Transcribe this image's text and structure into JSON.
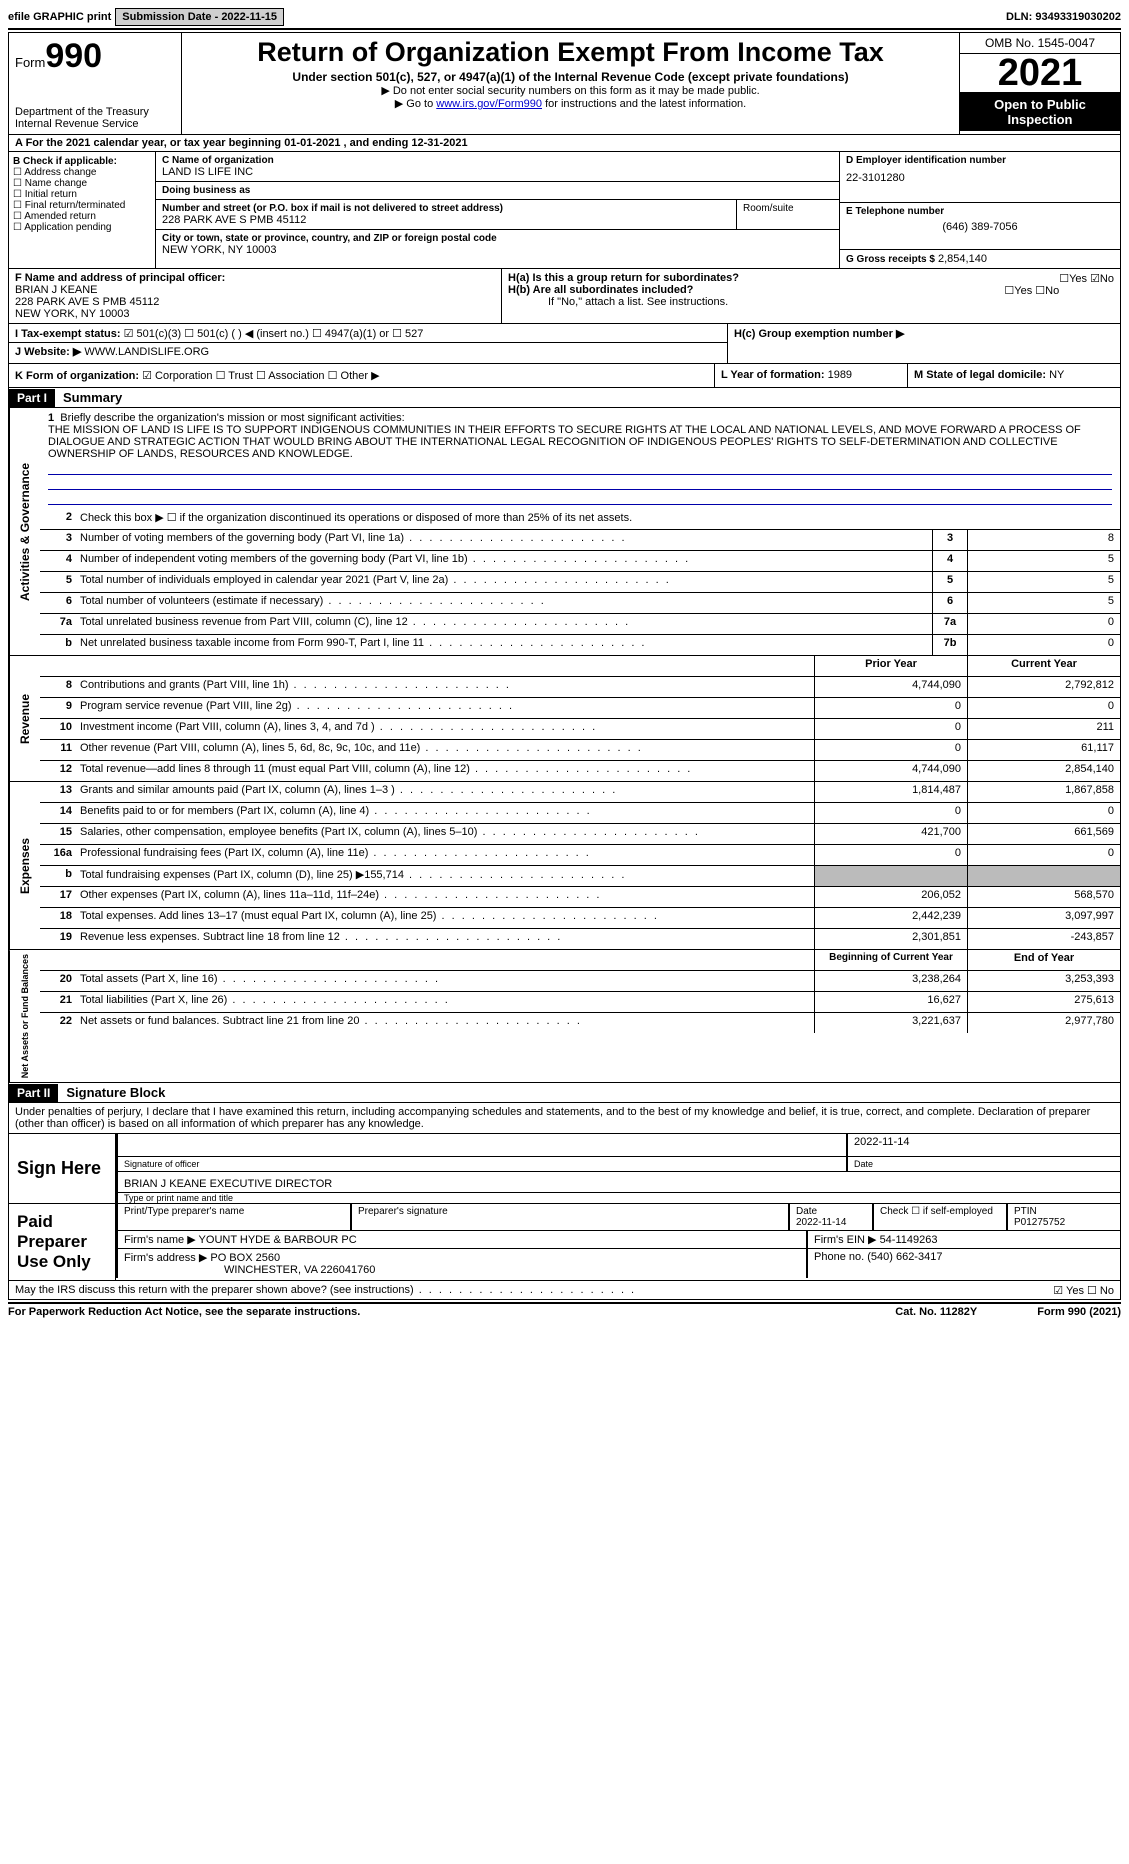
{
  "top": {
    "efile": "efile GRAPHIC print",
    "submission": "Submission Date - 2022-11-15",
    "dln": "DLN: 93493319030202"
  },
  "header": {
    "form_label": "Form",
    "form_num": "990",
    "title": "Return of Organization Exempt From Income Tax",
    "subtitle": "Under section 501(c), 527, or 4947(a)(1) of the Internal Revenue Code (except private foundations)",
    "note1": "▶ Do not enter social security numbers on this form as it may be made public.",
    "note2_pre": "▶ Go to ",
    "note2_link": "www.irs.gov/Form990",
    "note2_post": " for instructions and the latest information.",
    "dept": "Department of the Treasury Internal Revenue Service",
    "omb": "OMB No. 1545-0047",
    "year": "2021",
    "inspect": "Open to Public Inspection"
  },
  "rowA": "A For the 2021 calendar year, or tax year beginning 01-01-2021   , and ending 12-31-2021",
  "B": {
    "label": "B Check if applicable:",
    "items": [
      "Address change",
      "Name change",
      "Initial return",
      "Final return/terminated",
      "Amended return",
      "Application pending"
    ]
  },
  "C": {
    "name_label": "C Name of organization",
    "name": "LAND IS LIFE INC",
    "dba_label": "Doing business as",
    "dba": "",
    "street_label": "Number and street (or P.O. box if mail is not delivered to street address)",
    "street": "228 PARK AVE S PMB 45112",
    "room_label": "Room/suite",
    "city_label": "City or town, state or province, country, and ZIP or foreign postal code",
    "city": "NEW YORK, NY  10003"
  },
  "D": {
    "label": "D Employer identification number",
    "val": "22-3101280"
  },
  "E": {
    "label": "E Telephone number",
    "val": "(646) 389-7056"
  },
  "G": {
    "label": "G Gross receipts $",
    "val": "2,854,140"
  },
  "F": {
    "label": "F  Name and address of principal officer:",
    "name": "BRIAN J KEANE",
    "addr1": "228 PARK AVE S PMB 45112",
    "addr2": "NEW YORK, NY  10003"
  },
  "H": {
    "a": "H(a)  Is this a group return for subordinates?",
    "b": "H(b)  Are all subordinates included?",
    "note": "If \"No,\" attach a list. See instructions.",
    "c": "H(c)  Group exemption number ▶"
  },
  "I": {
    "label": "I    Tax-exempt status:",
    "opts": "501(c)(3)     ☐   501(c) (  ) ◀ (insert no.)     ☐   4947(a)(1) or   ☐  527"
  },
  "J": {
    "label": "J   Website: ▶",
    "val": "WWW.LANDISLIFE.ORG"
  },
  "K": {
    "label": "K Form of organization:",
    "opts": "Corporation  ☐ Trust  ☐ Association  ☐ Other ▶"
  },
  "L": {
    "label": "L Year of formation:",
    "val": "1989"
  },
  "M": {
    "label": "M State of legal domicile:",
    "val": "NY"
  },
  "parts": {
    "p1": "Part I",
    "p1t": "Summary",
    "p2": "Part II",
    "p2t": "Signature Block"
  },
  "summary": {
    "l1": "Briefly describe the organization's mission or most significant activities:",
    "mission": "THE MISSION OF LAND IS LIFE IS TO SUPPORT INDIGENOUS COMMUNITIES IN THEIR EFFORTS TO SECURE RIGHTS AT THE LOCAL AND NATIONAL LEVELS, AND MOVE FORWARD A PROCESS OF DIALOGUE AND STRATEGIC ACTION THAT WOULD BRING ABOUT THE INTERNATIONAL LEGAL RECOGNITION OF INDIGENOUS PEOPLES' RIGHTS TO SELF-DETERMINATION AND COLLECTIVE OWNERSHIP OF LANDS, RESOURCES AND KNOWLEDGE.",
    "l2": "Check this box ▶ ☐  if the organization discontinued its operations or disposed of more than 25% of its net assets.",
    "rows_a": [
      {
        "n": "3",
        "d": "Number of voting members of the governing body (Part VI, line 1a)",
        "c": "3",
        "v": "8"
      },
      {
        "n": "4",
        "d": "Number of independent voting members of the governing body (Part VI, line 1b)",
        "c": "4",
        "v": "5"
      },
      {
        "n": "5",
        "d": "Total number of individuals employed in calendar year 2021 (Part V, line 2a)",
        "c": "5",
        "v": "5"
      },
      {
        "n": "6",
        "d": "Total number of volunteers (estimate if necessary)",
        "c": "6",
        "v": "5"
      },
      {
        "n": "7a",
        "d": "Total unrelated business revenue from Part VIII, column (C), line 12",
        "c": "7a",
        "v": "0"
      },
      {
        "n": "b",
        "d": "Net unrelated business taxable income from Form 990-T, Part I, line 11",
        "c": "7b",
        "v": "0"
      }
    ],
    "hdr_prior": "Prior Year",
    "hdr_curr": "Current Year",
    "rows_rev": [
      {
        "n": "8",
        "d": "Contributions and grants (Part VIII, line 1h)",
        "p": "4,744,090",
        "c": "2,792,812"
      },
      {
        "n": "9",
        "d": "Program service revenue (Part VIII, line 2g)",
        "p": "0",
        "c": "0"
      },
      {
        "n": "10",
        "d": "Investment income (Part VIII, column (A), lines 3, 4, and 7d )",
        "p": "0",
        "c": "211"
      },
      {
        "n": "11",
        "d": "Other revenue (Part VIII, column (A), lines 5, 6d, 8c, 9c, 10c, and 11e)",
        "p": "0",
        "c": "61,117"
      },
      {
        "n": "12",
        "d": "Total revenue—add lines 8 through 11 (must equal Part VIII, column (A), line 12)",
        "p": "4,744,090",
        "c": "2,854,140"
      }
    ],
    "rows_exp": [
      {
        "n": "13",
        "d": "Grants and similar amounts paid (Part IX, column (A), lines 1–3 )",
        "p": "1,814,487",
        "c": "1,867,858"
      },
      {
        "n": "14",
        "d": "Benefits paid to or for members (Part IX, column (A), line 4)",
        "p": "0",
        "c": "0"
      },
      {
        "n": "15",
        "d": "Salaries, other compensation, employee benefits (Part IX, column (A), lines 5–10)",
        "p": "421,700",
        "c": "661,569"
      },
      {
        "n": "16a",
        "d": "Professional fundraising fees (Part IX, column (A), line 11e)",
        "p": "0",
        "c": "0"
      },
      {
        "n": "b",
        "d": "Total fundraising expenses (Part IX, column (D), line 25) ▶155,714",
        "p": "",
        "c": "",
        "grey": true
      },
      {
        "n": "17",
        "d": "Other expenses (Part IX, column (A), lines 11a–11d, 11f–24e)",
        "p": "206,052",
        "c": "568,570"
      },
      {
        "n": "18",
        "d": "Total expenses. Add lines 13–17 (must equal Part IX, column (A), line 25)",
        "p": "2,442,239",
        "c": "3,097,997"
      },
      {
        "n": "19",
        "d": "Revenue less expenses. Subtract line 18 from line 12",
        "p": "2,301,851",
        "c": "-243,857"
      }
    ],
    "hdr_beg": "Beginning of Current Year",
    "hdr_end": "End of Year",
    "rows_net": [
      {
        "n": "20",
        "d": "Total assets (Part X, line 16)",
        "p": "3,238,264",
        "c": "3,253,393"
      },
      {
        "n": "21",
        "d": "Total liabilities (Part X, line 26)",
        "p": "16,627",
        "c": "275,613"
      },
      {
        "n": "22",
        "d": "Net assets or fund balances. Subtract line 21 from line 20",
        "p": "3,221,637",
        "c": "2,977,780"
      }
    ]
  },
  "vtabs": {
    "a": "Activities & Governance",
    "r": "Revenue",
    "e": "Expenses",
    "n": "Net Assets or Fund Balances"
  },
  "sig": {
    "decl": "Under penalties of perjury, I declare that I have examined this return, including accompanying schedules and statements, and to the best of my knowledge and belief, it is true, correct, and complete. Declaration of preparer (other than officer) is based on all information of which preparer has any knowledge.",
    "sign_here": "Sign Here",
    "sig_officer": "Signature of officer",
    "date1": "2022-11-14",
    "date_lbl": "Date",
    "name_title": "BRIAN J KEANE  EXECUTIVE DIRECTOR",
    "type_name": "Type or print name and title",
    "paid": "Paid Preparer Use Only",
    "prep_name_lbl": "Print/Type preparer's name",
    "prep_sig_lbl": "Preparer's signature",
    "date2": "2022-11-14",
    "check_self": "Check ☐ if self-employed",
    "ptin_lbl": "PTIN",
    "ptin": "P01275752",
    "firm_name_lbl": "Firm's name   ▶",
    "firm_name": "YOUNT HYDE & BARBOUR PC",
    "firm_ein_lbl": "Firm's EIN ▶",
    "firm_ein": "54-1149263",
    "firm_addr_lbl": "Firm's address ▶",
    "firm_addr": "PO BOX 2560",
    "firm_city": "WINCHESTER, VA  226041760",
    "phone_lbl": "Phone no.",
    "phone": "(540) 662-3417",
    "discuss": "May the IRS discuss this return with the preparer shown above? (see instructions)"
  },
  "footer": {
    "l": "For Paperwork Reduction Act Notice, see the separate instructions.",
    "m": "Cat. No. 11282Y",
    "r": "Form 990 (2021)"
  }
}
